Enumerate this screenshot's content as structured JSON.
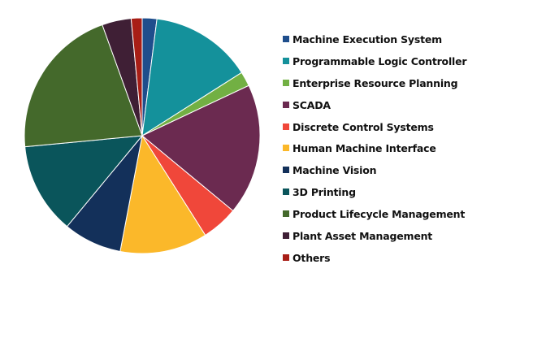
{
  "chart_data": {
    "type": "pie",
    "start": "top",
    "direction": "clockwise",
    "legend_position": "right",
    "unit": "%",
    "slices": [
      {
        "label": "Machine Execution System",
        "value": 2,
        "color": "#1f4e8c"
      },
      {
        "label": "Programmable Logic Controller",
        "value": 14,
        "color": "#14919b"
      },
      {
        "label": "Enterprise Resource Planning",
        "value": 2,
        "color": "#72b043"
      },
      {
        "label": "SCADA",
        "value": 18,
        "color": "#6b2a50"
      },
      {
        "label": "Discrete Control Systems",
        "value": 5,
        "color": "#f0473a"
      },
      {
        "label": "Human Machine Interface",
        "value": 12,
        "color": "#fbb82a"
      },
      {
        "label": "Machine Vision",
        "value": 8,
        "color": "#13305a"
      },
      {
        "label": "3D Printing",
        "value": 12.5,
        "color": "#0a555b"
      },
      {
        "label": "Product Lifecycle Management",
        "value": 21,
        "color": "#44692b"
      },
      {
        "label": "Plant Asset Management",
        "value": 4,
        "color": "#3f1f35"
      },
      {
        "label": "Others",
        "value": 1.5,
        "color": "#a81e16"
      }
    ]
  }
}
